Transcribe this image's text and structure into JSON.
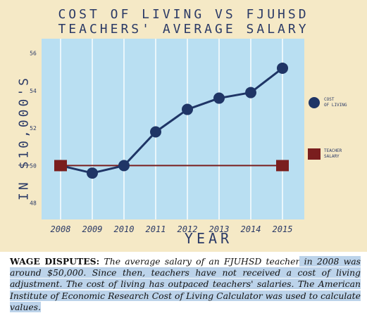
{
  "chart_data": {
    "type": "line",
    "title": [
      "COST OF LIVING VS FJUHSD",
      "TEACHERS' AVERAGE SALARY"
    ],
    "xlabel": "YEAR",
    "ylabel": "IN $10,000'S",
    "ylim": [
      47.2,
      56.7
    ],
    "y_ticks": [
      "48",
      "50",
      "52",
      "54",
      "56"
    ],
    "categories": [
      "2008",
      "2009",
      "2010",
      "2011",
      "2012",
      "2013",
      "2014",
      "2015"
    ],
    "series": [
      {
        "name": "COST OF LIVING",
        "marker": "circle",
        "color": "#1f3566",
        "values": [
          50.0,
          49.6,
          50.0,
          51.8,
          53.0,
          53.6,
          53.9,
          55.2
        ]
      },
      {
        "name": "TEACHER SALARY",
        "marker": "square",
        "color": "#7a1e1e",
        "values": [
          50.0,
          null,
          null,
          null,
          null,
          null,
          null,
          50.0
        ]
      }
    ],
    "grid": "vertical",
    "legend_position": "right"
  },
  "colors": {
    "frame_background": "#f5e9c6",
    "plot_background": "#b9dff2",
    "grid": "#ffffff",
    "text": "#2b3a66",
    "caption_highlight": "#bcd3ea"
  },
  "caption": {
    "lead": "WAGE DISPUTES:",
    "plain": " The average salary of an FJUHSD teacher",
    "highlighted": " in 2008 was around $50,000. Since then, teachers have not received a cost of living adjustment. The cost of living has outpaced teachers' salaries. The American Institute of Economic Research Cost of Living Calculator was used to calculate values."
  }
}
